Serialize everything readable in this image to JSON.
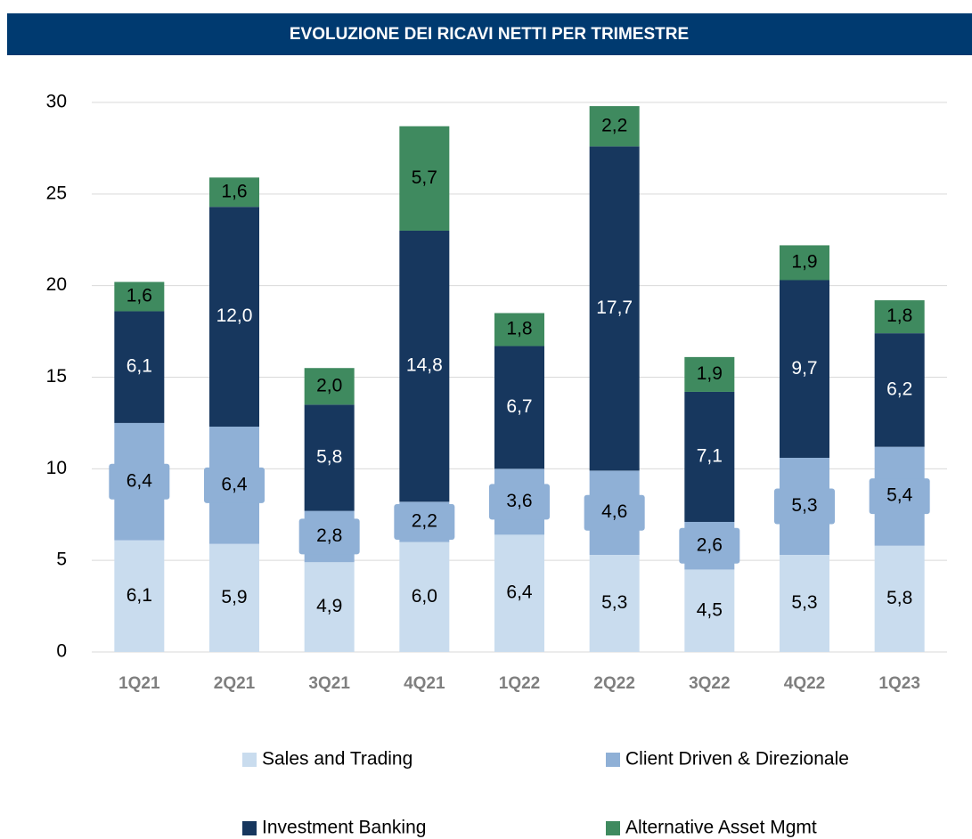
{
  "chart_data": {
    "type": "stacked_bar",
    "title": "EVOLUZIONE DEI RICAVI NETTI PER TRIMESTRE",
    "categories": [
      "1Q21",
      "2Q21",
      "3Q21",
      "4Q21",
      "1Q22",
      "2Q22",
      "3Q22",
      "4Q22",
      "1Q23"
    ],
    "series": [
      {
        "name": "Sales and Trading",
        "color": "#c9dcee",
        "label_color": "#000000",
        "values": [
          6.1,
          5.9,
          4.9,
          6.0,
          6.4,
          5.3,
          4.5,
          5.3,
          5.8
        ],
        "value_labels": [
          "6,1",
          "5,9",
          "4,9",
          "6,0",
          "6,4",
          "5,3",
          "4,5",
          "5,3",
          "5,8"
        ]
      },
      {
        "name": "Client Driven & Direzionale",
        "color": "#8fb0d6",
        "label_color": "#000000",
        "values": [
          6.4,
          6.4,
          2.8,
          2.2,
          3.6,
          4.6,
          2.6,
          5.3,
          5.4
        ],
        "value_labels": [
          "6,4",
          "6,4",
          "2,8",
          "2,2",
          "3,6",
          "4,6",
          "2,6",
          "5,3",
          "5,4"
        ]
      },
      {
        "name": "Investment Banking",
        "color": "#17375e",
        "label_color": "#ffffff",
        "values": [
          6.1,
          12.0,
          5.8,
          14.8,
          6.7,
          17.7,
          7.1,
          9.7,
          6.2
        ],
        "value_labels": [
          "6,1",
          "12,0",
          "5,8",
          "14,8",
          "6,7",
          "17,7",
          "7,1",
          "9,7",
          "6,2"
        ]
      },
      {
        "name": "Alternative Asset Mgmt",
        "color": "#3f8a5f",
        "label_color": "#000000",
        "values": [
          1.6,
          1.6,
          2.0,
          5.7,
          1.8,
          2.2,
          1.9,
          1.9,
          1.8
        ],
        "value_labels": [
          "1,6",
          "1,6",
          "2,0",
          "5,7",
          "1,8",
          "2,2",
          "1,9",
          "1,9",
          "1,8"
        ]
      }
    ],
    "ylim": [
      0,
      30
    ],
    "yticks": [
      0,
      5,
      10,
      15,
      20,
      25,
      30
    ],
    "grid": true,
    "legend": "bottom"
  }
}
